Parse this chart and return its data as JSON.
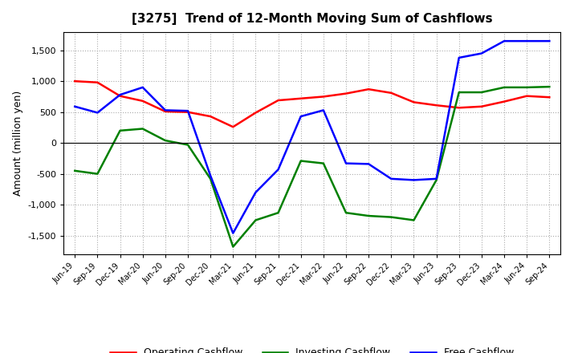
{
  "title": "[3275]  Trend of 12-Month Moving Sum of Cashflows",
  "ylabel": "Amount (million yen)",
  "x_labels": [
    "Jun-19",
    "Sep-19",
    "Dec-19",
    "Mar-20",
    "Jun-20",
    "Sep-20",
    "Dec-20",
    "Mar-21",
    "Jun-21",
    "Sep-21",
    "Dec-21",
    "Mar-22",
    "Jun-22",
    "Sep-22",
    "Dec-22",
    "Mar-23",
    "Jun-23",
    "Sep-23",
    "Dec-23",
    "Mar-24",
    "Jun-24",
    "Sep-24"
  ],
  "operating": [
    1000,
    980,
    760,
    680,
    510,
    500,
    430,
    260,
    490,
    690,
    720,
    750,
    800,
    870,
    810,
    660,
    610,
    570,
    590,
    670,
    760,
    740
  ],
  "investing": [
    -450,
    -500,
    200,
    230,
    40,
    -30,
    -580,
    -1680,
    -1250,
    -1130,
    -290,
    -330,
    -1130,
    -1180,
    -1200,
    -1250,
    -600,
    820,
    820,
    900,
    900,
    910
  ],
  "free": [
    590,
    490,
    780,
    900,
    530,
    520,
    -530,
    -1460,
    -800,
    -430,
    430,
    530,
    -330,
    -340,
    -580,
    -600,
    -580,
    1380,
    1450,
    1650,
    1650,
    1650
  ],
  "ylim": [
    -1800,
    1800
  ],
  "yticks": [
    -1500,
    -1000,
    -500,
    0,
    500,
    1000,
    1500
  ],
  "operating_color": "#ff0000",
  "investing_color": "#008000",
  "free_color": "#0000ff",
  "bg_color": "#ffffff",
  "grid_color": "#aaaaaa",
  "linewidth": 1.8
}
